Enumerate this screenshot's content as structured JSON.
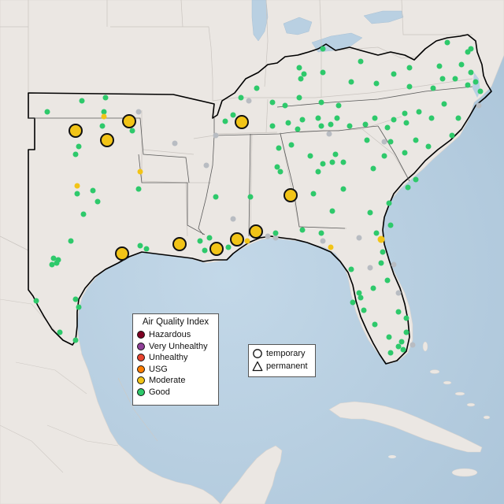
{
  "legend": {
    "title": "Air Quality Index",
    "categories": [
      {
        "label": "Hazardous",
        "color": "#7e0023"
      },
      {
        "label": "Very Unhealthy",
        "color": "#8f3f97"
      },
      {
        "label": "Unhealthy",
        "color": "#e8442f"
      },
      {
        "label": "USG",
        "color": "#ff7e00"
      },
      {
        "label": "Moderate",
        "color": "#f2c417"
      },
      {
        "label": "Good",
        "color": "#2ec96b"
      }
    ]
  },
  "site_types": [
    {
      "label": "temporary",
      "shape": "circle-icon"
    },
    {
      "label": "permanent",
      "shape": "triangle-icon"
    }
  ],
  "colors": {
    "ocean": "#b9d0e2",
    "land": "#ebe7e3",
    "region_border": "#000000",
    "inactive_site": "#b8bcc2"
  }
}
